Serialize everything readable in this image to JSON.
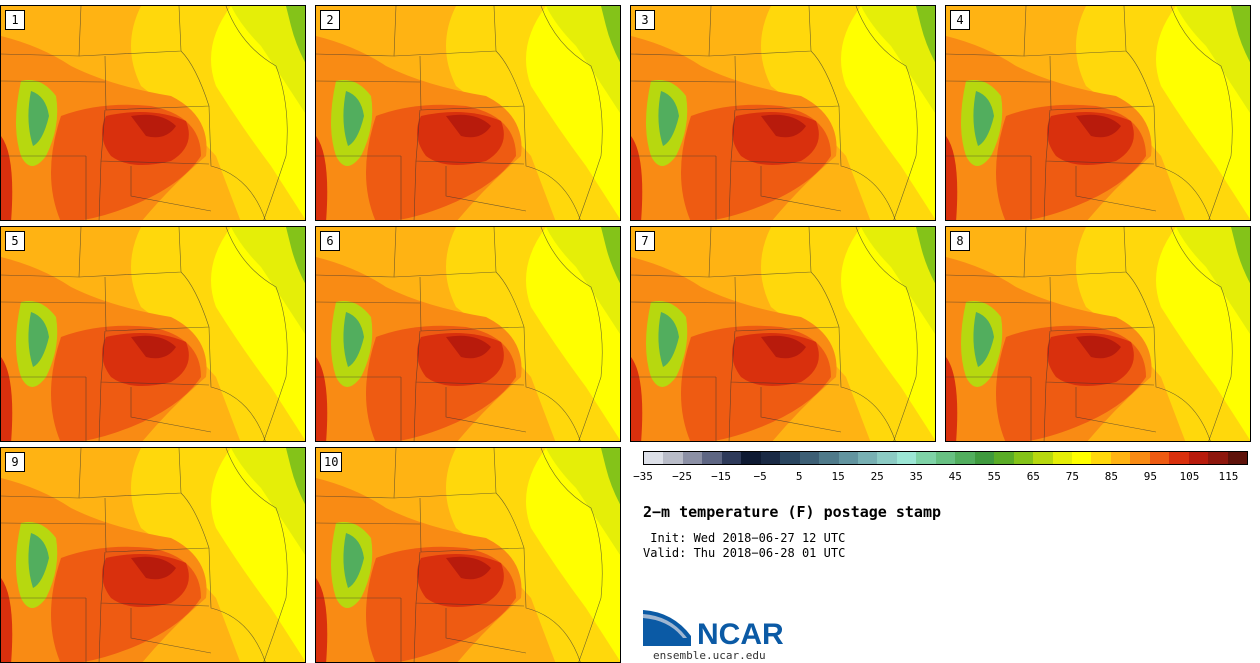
{
  "title": "2-m temperature (F) postage stamp",
  "init_line": " Init: Wed 2018-06-27 12 UTC",
  "valid_line": "Valid: Thu 2018-06-28 01 UTC",
  "members": [
    "1",
    "2",
    "3",
    "4",
    "5",
    "6",
    "7",
    "8",
    "9",
    "10"
  ],
  "colorbar": {
    "colors": [
      "#dde0e8",
      "#b9bcc8",
      "#8c90a5",
      "#5e6683",
      "#2e3a5a",
      "#0e1a33",
      "#1a2a45",
      "#2a4660",
      "#3d5f75",
      "#4f7a8a",
      "#62949f",
      "#78b0b3",
      "#8ccbc4",
      "#9ce6d5",
      "#7fd3a7",
      "#68c183",
      "#52ae5e",
      "#3f9a3e",
      "#5aac27",
      "#84c319",
      "#b7d80f",
      "#e5ee08",
      "#ffff00",
      "#ffd80c",
      "#ffb313",
      "#f98b14",
      "#ee5b12",
      "#d9300d",
      "#b81b0c",
      "#8e170d",
      "#5e120a"
    ],
    "tick_labels": [
      "-35",
      "-25",
      "-15",
      "-5",
      "5",
      "15",
      "25",
      "35",
      "45",
      "55",
      "65",
      "75",
      "85",
      "95",
      "105",
      "115"
    ]
  },
  "logo": {
    "text": "NCAR",
    "url": "ensemble.ucar.edu",
    "color": "#0b5aa5"
  }
}
